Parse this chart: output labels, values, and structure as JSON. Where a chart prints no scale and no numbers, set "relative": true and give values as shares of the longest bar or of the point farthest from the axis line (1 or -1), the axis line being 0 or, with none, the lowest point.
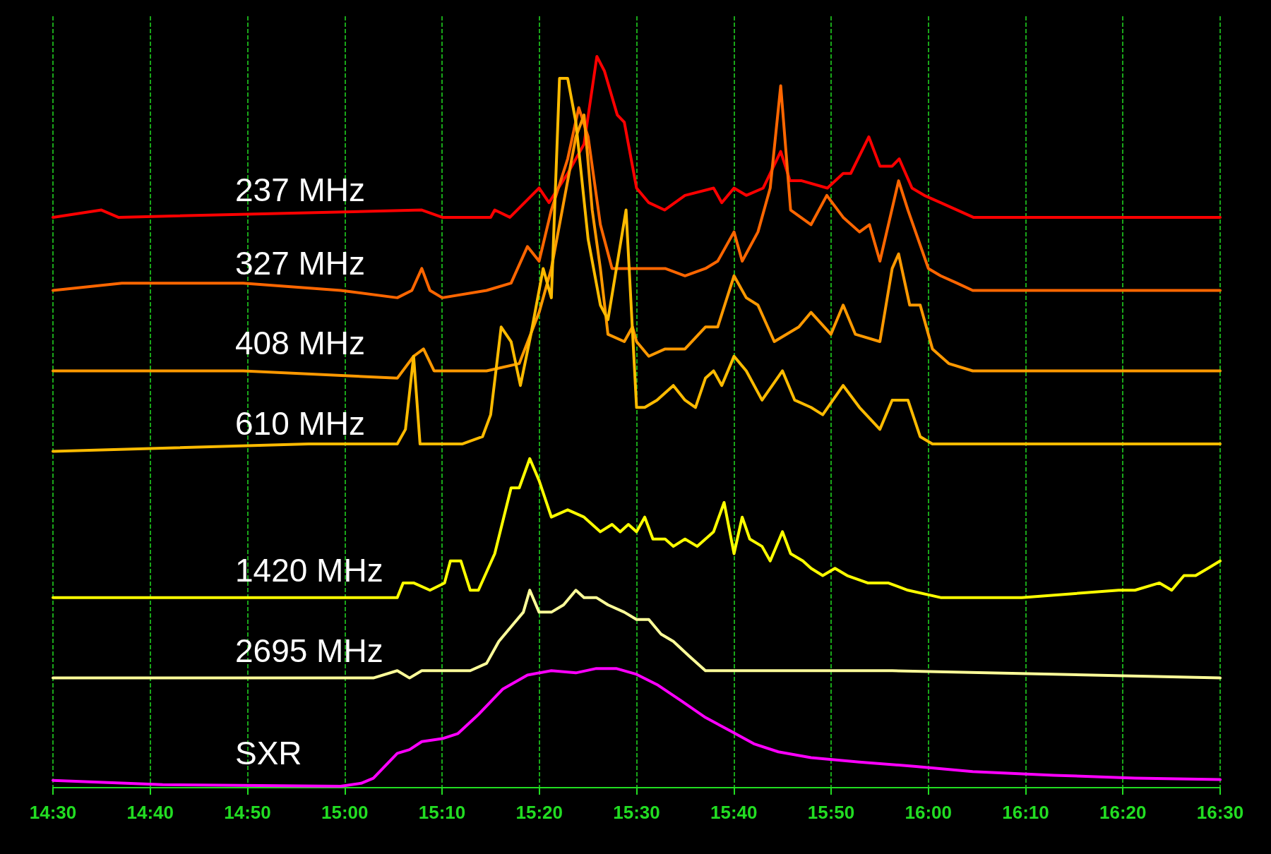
{
  "chart_data": {
    "type": "line",
    "relative": true,
    "grid": "x",
    "legend": false,
    "marker": "none",
    "line_style": "solid",
    "xlim": [
      14.5,
      16.5
    ],
    "xticks": [
      {
        "value": 14.5,
        "label": "14:30"
      },
      {
        "value": 14.6667,
        "label": "14:40"
      },
      {
        "value": 14.8333,
        "label": "14:50"
      },
      {
        "value": 15,
        "label": "15:00"
      },
      {
        "value": 15.1667,
        "label": "15:10"
      },
      {
        "value": 15.3333,
        "label": "15:20"
      },
      {
        "value": 15.5,
        "label": "15:30"
      },
      {
        "value": 15.6667,
        "label": "15:40"
      },
      {
        "value": 15.8333,
        "label": "15:50"
      },
      {
        "value": 16,
        "label": "16:00"
      },
      {
        "value": 16.1667,
        "label": "16:10"
      },
      {
        "value": 16.3333,
        "label": "16:20"
      },
      {
        "value": 16.5,
        "label": "16:30"
      }
    ],
    "series": [
      {
        "name": "237 MHz",
        "color": "#ff0000",
        "x": [
          14.5,
          14.583,
          14.612,
          15.132,
          15.167,
          15.208,
          15.25,
          15.257,
          15.283,
          15.333,
          15.35,
          15.382,
          15.41,
          15.432,
          15.445,
          15.467,
          15.479,
          15.5,
          15.521,
          15.548,
          15.583,
          15.632,
          15.646,
          15.667,
          15.688,
          15.717,
          15.747,
          15.763,
          15.783,
          15.827,
          15.854,
          15.867,
          15.898,
          15.917,
          15.938,
          15.95,
          15.972,
          15.993,
          16.021,
          16.077,
          16.215,
          16.5
        ],
        "values": [
          0.78,
          0.79,
          0.78,
          0.79,
          0.78,
          0.78,
          0.78,
          0.79,
          0.78,
          0.82,
          0.8,
          0.84,
          0.88,
          1.0,
          0.98,
          0.92,
          0.91,
          0.82,
          0.8,
          0.79,
          0.81,
          0.82,
          0.8,
          0.82,
          0.81,
          0.82,
          0.87,
          0.83,
          0.83,
          0.82,
          0.84,
          0.84,
          0.89,
          0.85,
          0.85,
          0.86,
          0.82,
          0.81,
          0.8,
          0.78,
          0.78,
          0.78
        ]
      },
      {
        "name": "327 MHz",
        "color": "#ff6600",
        "x": [
          14.5,
          14.618,
          14.826,
          14.993,
          15.09,
          15.115,
          15.132,
          15.146,
          15.167,
          15.243,
          15.285,
          15.313,
          15.333,
          15.354,
          15.382,
          15.401,
          15.417,
          15.438,
          15.458,
          15.486,
          15.521,
          15.549,
          15.583,
          15.618,
          15.639,
          15.667,
          15.681,
          15.708,
          15.729,
          15.747,
          15.757,
          15.764,
          15.799,
          15.826,
          15.854,
          15.882,
          15.899,
          15.917,
          15.949,
          15.965,
          16.0,
          16.021,
          16.049,
          16.076,
          16.215,
          16.5
        ],
        "values": [
          0.68,
          0.69,
          0.69,
          0.68,
          0.67,
          0.68,
          0.71,
          0.68,
          0.67,
          0.68,
          0.69,
          0.74,
          0.72,
          0.79,
          0.86,
          0.93,
          0.89,
          0.77,
          0.71,
          0.71,
          0.71,
          0.71,
          0.7,
          0.71,
          0.72,
          0.76,
          0.72,
          0.76,
          0.82,
          0.96,
          0.86,
          0.79,
          0.77,
          0.81,
          0.78,
          0.76,
          0.77,
          0.72,
          0.83,
          0.79,
          0.71,
          0.7,
          0.69,
          0.68,
          0.68,
          0.68
        ]
      },
      {
        "name": "408 MHz",
        "color": "#ff9900",
        "x": [
          14.5,
          14.826,
          15.09,
          15.118,
          15.135,
          15.153,
          15.188,
          15.243,
          15.299,
          15.333,
          15.354,
          15.375,
          15.396,
          15.41,
          15.424,
          15.438,
          15.451,
          15.479,
          15.493,
          15.5,
          15.521,
          15.549,
          15.583,
          15.618,
          15.639,
          15.667,
          15.688,
          15.708,
          15.736,
          15.778,
          15.799,
          15.833,
          15.854,
          15.875,
          15.917,
          15.938,
          15.949,
          15.968,
          15.986,
          16.007,
          16.035,
          16.076,
          16.215,
          16.5
        ],
        "values": [
          0.57,
          0.57,
          0.56,
          0.59,
          0.6,
          0.57,
          0.57,
          0.57,
          0.58,
          0.65,
          0.71,
          0.8,
          0.89,
          0.92,
          0.79,
          0.71,
          0.62,
          0.61,
          0.63,
          0.61,
          0.59,
          0.6,
          0.6,
          0.63,
          0.63,
          0.7,
          0.67,
          0.66,
          0.61,
          0.63,
          0.65,
          0.62,
          0.66,
          0.62,
          0.61,
          0.71,
          0.73,
          0.66,
          0.66,
          0.6,
          0.58,
          0.57,
          0.57,
          0.57
        ]
      },
      {
        "name": "610 MHz",
        "color": "#ffbb00",
        "x": [
          14.5,
          14.938,
          15.09,
          15.104,
          15.118,
          15.129,
          15.167,
          15.201,
          15.236,
          15.25,
          15.268,
          15.285,
          15.301,
          15.319,
          15.34,
          15.354,
          15.368,
          15.382,
          15.396,
          15.417,
          15.438,
          15.451,
          15.482,
          15.5,
          15.514,
          15.535,
          15.563,
          15.583,
          15.601,
          15.618,
          15.632,
          15.646,
          15.667,
          15.688,
          15.715,
          15.75,
          15.771,
          15.799,
          15.819,
          15.854,
          15.882,
          15.917,
          15.938,
          15.965,
          15.986,
          16.007,
          16.049,
          16.215,
          16.299,
          16.354,
          16.5
        ],
        "values": [
          0.46,
          0.47,
          0.47,
          0.49,
          0.59,
          0.47,
          0.47,
          0.47,
          0.48,
          0.51,
          0.63,
          0.61,
          0.55,
          0.62,
          0.71,
          0.67,
          0.97,
          0.97,
          0.91,
          0.75,
          0.66,
          0.64,
          0.79,
          0.52,
          0.52,
          0.53,
          0.55,
          0.53,
          0.52,
          0.56,
          0.57,
          0.55,
          0.59,
          0.57,
          0.53,
          0.57,
          0.53,
          0.52,
          0.51,
          0.55,
          0.52,
          0.49,
          0.53,
          0.53,
          0.48,
          0.47,
          0.47,
          0.47,
          0.47,
          0.47,
          0.47
        ]
      },
      {
        "name": "1420 MHz",
        "color": "#ffff00",
        "x": [
          14.5,
          15.076,
          15.09,
          15.1,
          15.118,
          15.146,
          15.171,
          15.181,
          15.199,
          15.215,
          15.229,
          15.257,
          15.285,
          15.299,
          15.317,
          15.333,
          15.354,
          15.382,
          15.41,
          15.438,
          15.458,
          15.472,
          15.486,
          15.5,
          15.514,
          15.528,
          15.549,
          15.563,
          15.583,
          15.604,
          15.632,
          15.65,
          15.667,
          15.681,
          15.694,
          15.715,
          15.729,
          15.75,
          15.764,
          15.785,
          15.799,
          15.819,
          15.84,
          15.861,
          15.896,
          15.931,
          15.965,
          16.021,
          16.16,
          16.326,
          16.354,
          16.396,
          16.417,
          16.438,
          16.458,
          16.479,
          16.5
        ],
        "values": [
          0.26,
          0.26,
          0.26,
          0.28,
          0.28,
          0.27,
          0.28,
          0.31,
          0.31,
          0.27,
          0.27,
          0.32,
          0.41,
          0.41,
          0.45,
          0.42,
          0.37,
          0.38,
          0.37,
          0.35,
          0.36,
          0.35,
          0.36,
          0.35,
          0.37,
          0.34,
          0.34,
          0.33,
          0.34,
          0.33,
          0.35,
          0.39,
          0.32,
          0.37,
          0.34,
          0.33,
          0.31,
          0.35,
          0.32,
          0.31,
          0.3,
          0.29,
          0.3,
          0.29,
          0.28,
          0.28,
          0.27,
          0.26,
          0.26,
          0.27,
          0.27,
          0.28,
          0.27,
          0.29,
          0.29,
          0.3,
          0.31
        ]
      },
      {
        "name": "2695 MHz",
        "color": "#ffff99",
        "x": [
          14.5,
          15.049,
          15.09,
          15.111,
          15.132,
          15.16,
          15.215,
          15.243,
          15.264,
          15.285,
          15.306,
          15.317,
          15.333,
          15.354,
          15.375,
          15.396,
          15.41,
          15.431,
          15.451,
          15.479,
          15.5,
          15.521,
          15.542,
          15.563,
          15.59,
          15.618,
          15.66,
          15.799,
          15.938,
          16.5
        ],
        "values": [
          0.15,
          0.15,
          0.16,
          0.15,
          0.16,
          0.16,
          0.16,
          0.17,
          0.2,
          0.22,
          0.24,
          0.27,
          0.24,
          0.24,
          0.25,
          0.27,
          0.26,
          0.26,
          0.25,
          0.24,
          0.23,
          0.23,
          0.21,
          0.2,
          0.18,
          0.16,
          0.16,
          0.16,
          0.16,
          0.15
        ]
      },
      {
        "name": "SXR",
        "color": "#ff00ff",
        "x": [
          14.5,
          14.688,
          14.993,
          15.028,
          15.049,
          15.09,
          15.111,
          15.132,
          15.167,
          15.194,
          15.229,
          15.271,
          15.313,
          15.354,
          15.396,
          15.431,
          15.465,
          15.5,
          15.535,
          15.576,
          15.618,
          15.66,
          15.701,
          15.743,
          15.799,
          15.882,
          15.979,
          16.076,
          16.215,
          16.354,
          16.5
        ],
        "values": [
          0.01,
          0.004,
          0.002,
          0.006,
          0.013,
          0.047,
          0.052,
          0.063,
          0.067,
          0.074,
          0.1,
          0.135,
          0.154,
          0.16,
          0.157,
          0.163,
          0.163,
          0.155,
          0.141,
          0.119,
          0.096,
          0.078,
          0.06,
          0.049,
          0.041,
          0.035,
          0.029,
          0.022,
          0.017,
          0.013,
          0.011
        ]
      }
    ]
  }
}
